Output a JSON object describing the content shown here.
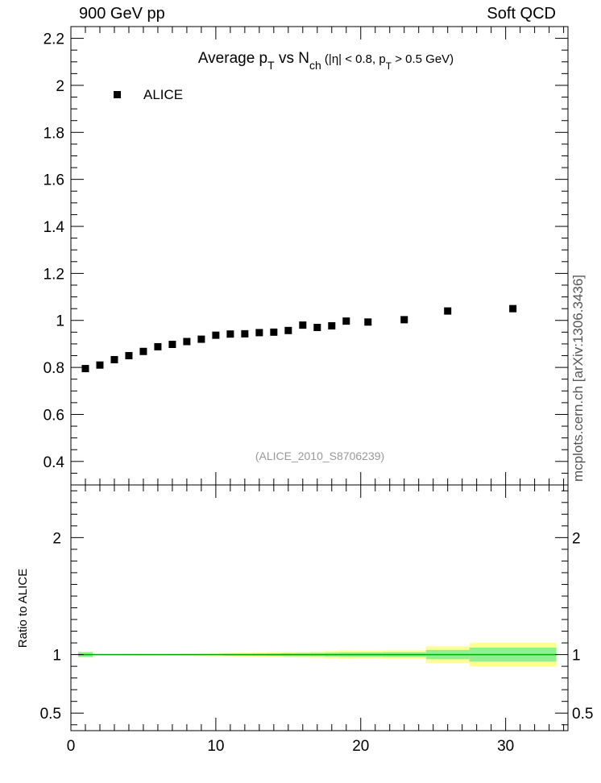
{
  "header": {
    "left": "900 GeV pp",
    "right": "Soft QCD"
  },
  "side_note": "mcplots.cern.ch [arXiv:1306.3436]",
  "chart_data": [
    {
      "type": "scatter",
      "title": {
        "prefix": "Average p",
        "sub1": "T",
        "mid": " vs N",
        "sub2": "ch",
        "mid2": " (|η| < 0.8, p",
        "sub3": "T",
        "suffix": " > 0.5 GeV)"
      },
      "legend": {
        "label": "ALICE",
        "placement": "top-left"
      },
      "reference": "(ALICE_2010_S8706239)",
      "xlim": [
        0,
        34.3
      ],
      "ylim": [
        0.3,
        2.25
      ],
      "yticks": [
        "0.4",
        "0.6",
        "0.8",
        "1",
        "1.2",
        "1.4",
        "1.6",
        "1.8",
        "2",
        "2.2"
      ],
      "series": [
        {
          "name": "ALICE",
          "x": [
            1,
            2,
            3,
            4,
            5,
            6,
            7,
            8,
            9,
            10,
            11,
            12,
            13,
            14,
            15,
            16,
            17,
            18,
            19,
            20.5,
            23,
            26,
            30.5
          ],
          "y": [
            0.795,
            0.81,
            0.833,
            0.85,
            0.868,
            0.888,
            0.898,
            0.91,
            0.92,
            0.937,
            0.942,
            0.943,
            0.948,
            0.95,
            0.957,
            0.98,
            0.97,
            0.977,
            0.997,
            0.993,
            1.003,
            1.04,
            1.05
          ]
        }
      ]
    },
    {
      "type": "area",
      "ylabel": "Ratio to ALICE",
      "xlim": [
        0,
        34.3
      ],
      "ylim": [
        0.35,
        2.45
      ],
      "yticks": [
        "0.5",
        "1",
        "2"
      ],
      "xticks": [
        "0",
        "10",
        "20",
        "30"
      ],
      "bands": {
        "edges": [
          0.5,
          1.5,
          2.5,
          3.5,
          4.5,
          5.5,
          6.5,
          7.5,
          8.5,
          9.5,
          10.5,
          11.5,
          12.5,
          13.5,
          14.5,
          15.5,
          16.5,
          17.5,
          18.5,
          19.5,
          21.5,
          24.5,
          27.5,
          33.5
        ],
        "stat": [
          0.02,
          0.005,
          0.005,
          0.005,
          0.005,
          0.005,
          0.005,
          0.005,
          0.005,
          0.006,
          0.008,
          0.008,
          0.009,
          0.01,
          0.012,
          0.013,
          0.014,
          0.016,
          0.018,
          0.018,
          0.02,
          0.04,
          0.06
        ],
        "total": [
          0.025,
          0.006,
          0.006,
          0.007,
          0.008,
          0.008,
          0.009,
          0.01,
          0.012,
          0.013,
          0.015,
          0.017,
          0.019,
          0.021,
          0.023,
          0.025,
          0.027,
          0.03,
          0.035,
          0.033,
          0.035,
          0.07,
          0.1
        ],
        "stat_color": "#90f090",
        "total_color": "#ffff90",
        "line_color": "#00aa00"
      }
    }
  ]
}
